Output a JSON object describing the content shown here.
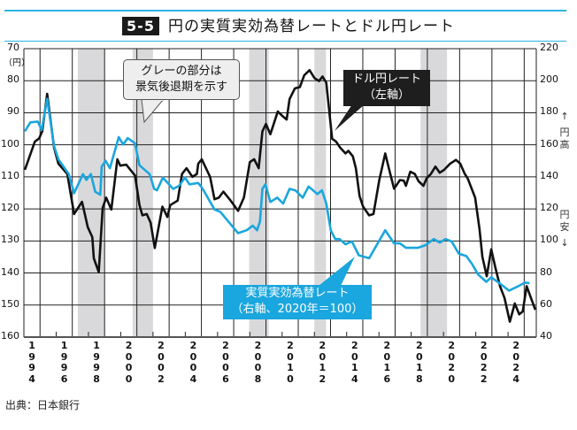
{
  "header": {
    "number": "5-5",
    "title": "円の実質実効為替レートとドル円レート"
  },
  "source": "出典：日本銀行",
  "chart_data": {
    "type": "line",
    "title": "円の実質実効為替レートとドル円レート",
    "left_axis": {
      "unit": "（円）",
      "ticks": [
        70,
        80,
        90,
        100,
        110,
        120,
        130,
        140,
        150,
        160
      ],
      "ylim": [
        70,
        160
      ],
      "inverted": true
    },
    "right_axis": {
      "ticks": [
        220,
        200,
        180,
        160,
        140,
        120,
        100,
        80,
        60,
        40
      ],
      "ylim": [
        40,
        220
      ],
      "up_label": "円高",
      "down_label": "円安"
    },
    "x_ticks": [
      "1994",
      "1996",
      "1998",
      "2000",
      "2002",
      "2004",
      "2006",
      "2008",
      "2010",
      "2012",
      "2014",
      "2016",
      "2018",
      "2020",
      "2022",
      "2024"
    ],
    "xlim": [
      1994,
      2025.75
    ],
    "grid": true,
    "recessions": [
      [
        1997.34,
        1998.98
      ],
      [
        2000.74,
        2002.0
      ],
      [
        2007.96,
        2009.17
      ],
      [
        2012.0,
        2012.72
      ],
      [
        2018.58,
        2020.22
      ]
    ],
    "annotations": {
      "recession_note": [
        "グレーの部分は",
        "景気後退期を示す"
      ],
      "usdjpy_label": [
        "ドル円レート",
        "（左軸）"
      ],
      "reer_label": [
        "実質実効為替レート",
        "（右軸、2020年＝100）"
      ]
    },
    "colors": {
      "usdjpy": "#111111",
      "reer": "#1aa6de",
      "recession": "#d9d9db"
    },
    "series": [
      {
        "name": "ドル円レート（左軸）",
        "axis": "left",
        "points": [
          [
            1994.06,
            107.8
          ],
          [
            1994.68,
            99
          ],
          [
            1994.95,
            98
          ],
          [
            1995.14,
            95.7
          ],
          [
            1995.44,
            84.1
          ],
          [
            1995.87,
            100.9
          ],
          [
            1996.14,
            105.9
          ],
          [
            1996.69,
            109.1
          ],
          [
            1997.11,
            121.6
          ],
          [
            1997.6,
            117.8
          ],
          [
            1997.96,
            125.7
          ],
          [
            1998.24,
            128.8
          ],
          [
            1998.33,
            135.4
          ],
          [
            1998.64,
            139.7
          ],
          [
            1998.88,
            119.7
          ],
          [
            1999.1,
            116.5
          ],
          [
            1999.42,
            120.2
          ],
          [
            1999.79,
            104.5
          ],
          [
            1999.97,
            106.5
          ],
          [
            2000.34,
            106.2
          ],
          [
            2000.89,
            109.6
          ],
          [
            2001.16,
            118.8
          ],
          [
            2001.34,
            122
          ],
          [
            2001.61,
            121.6
          ],
          [
            2001.85,
            124.3
          ],
          [
            2002.11,
            132.2
          ],
          [
            2002.58,
            119.3
          ],
          [
            2002.89,
            122.5
          ],
          [
            2003.07,
            118.8
          ],
          [
            2003.53,
            117.4
          ],
          [
            2003.8,
            109.1
          ],
          [
            2004.08,
            107.3
          ],
          [
            2004.44,
            110
          ],
          [
            2004.72,
            109.1
          ],
          [
            2004.8,
            105.9
          ],
          [
            2005.02,
            104.5
          ],
          [
            2005.54,
            110
          ],
          [
            2005.81,
            117
          ],
          [
            2006.08,
            116.5
          ],
          [
            2006.36,
            114.6
          ],
          [
            2006.81,
            117.4
          ],
          [
            2007.27,
            120.6
          ],
          [
            2007.63,
            116.5
          ],
          [
            2008.0,
            105.4
          ],
          [
            2008.27,
            104.5
          ],
          [
            2008.55,
            107.3
          ],
          [
            2008.78,
            95.8
          ],
          [
            2009.0,
            93.5
          ],
          [
            2009.27,
            96.7
          ],
          [
            2009.73,
            89.6
          ],
          [
            2010.06,
            91.2
          ],
          [
            2010.28,
            92.1
          ],
          [
            2010.46,
            85.7
          ],
          [
            2010.79,
            82.4
          ],
          [
            2011.1,
            82
          ],
          [
            2011.37,
            78.3
          ],
          [
            2011.7,
            76.7
          ],
          [
            2012.01,
            79.2
          ],
          [
            2012.29,
            80.1
          ],
          [
            2012.5,
            78.7
          ],
          [
            2012.74,
            80.6
          ],
          [
            2013.1,
            98.1
          ],
          [
            2013.34,
            99
          ],
          [
            2013.6,
            100.9
          ],
          [
            2013.93,
            102.7
          ],
          [
            2014.11,
            101.9
          ],
          [
            2014.38,
            103.6
          ],
          [
            2014.57,
            107.3
          ],
          [
            2014.8,
            116
          ],
          [
            2015.02,
            119.3
          ],
          [
            2015.39,
            122
          ],
          [
            2015.66,
            121.6
          ],
          [
            2016.02,
            111
          ],
          [
            2016.39,
            102.7
          ],
          [
            2016.66,
            108.2
          ],
          [
            2016.94,
            113.7
          ],
          [
            2017.3,
            111
          ],
          [
            2017.54,
            111.2
          ],
          [
            2017.67,
            112.8
          ],
          [
            2017.94,
            108.4
          ],
          [
            2018.22,
            109.1
          ],
          [
            2018.46,
            111.4
          ],
          [
            2018.76,
            112.8
          ],
          [
            2018.95,
            110.5
          ],
          [
            2019.22,
            109.1
          ],
          [
            2019.5,
            106.8
          ],
          [
            2019.77,
            108.7
          ],
          [
            2020.04,
            107.8
          ],
          [
            2020.41,
            105.9
          ],
          [
            2020.77,
            104.7
          ],
          [
            2021.04,
            105.9
          ],
          [
            2021.32,
            109.1
          ],
          [
            2021.5,
            110.5
          ],
          [
            2021.96,
            116.5
          ],
          [
            2022.23,
            126.2
          ],
          [
            2022.41,
            135
          ],
          [
            2022.68,
            141
          ],
          [
            2022.96,
            132.6
          ],
          [
            2023.23,
            138.6
          ],
          [
            2023.5,
            144.1
          ],
          [
            2023.78,
            147.8
          ],
          [
            2024.11,
            155.2
          ],
          [
            2024.42,
            149.5
          ],
          [
            2024.69,
            152.9
          ],
          [
            2024.91,
            152
          ],
          [
            2025.15,
            144.1
          ],
          [
            2025.42,
            147.8
          ],
          [
            2025.69,
            151.5
          ]
        ]
      },
      {
        "name": "実質実効為替レート（右軸、2020年＝100）",
        "axis": "right",
        "points": [
          [
            1994.06,
            168.4
          ],
          [
            1994.4,
            174
          ],
          [
            1994.86,
            174.5
          ],
          [
            1995.1,
            169.3
          ],
          [
            1995.44,
            188.7
          ],
          [
            1995.87,
            159.2
          ],
          [
            1996.14,
            150.9
          ],
          [
            1996.78,
            141.7
          ],
          [
            1997.11,
            129.8
          ],
          [
            1997.66,
            141.7
          ],
          [
            1997.87,
            138.1
          ],
          [
            1998.15,
            141.7
          ],
          [
            1998.42,
            130.7
          ],
          [
            1998.73,
            128.8
          ],
          [
            1998.82,
            146.4
          ],
          [
            1999.06,
            150
          ],
          [
            1999.33,
            145.4
          ],
          [
            1999.88,
            164.8
          ],
          [
            2000.15,
            160.2
          ],
          [
            2000.43,
            164.2
          ],
          [
            2000.88,
            161
          ],
          [
            2001.16,
            147.2
          ],
          [
            2001.79,
            141.7
          ],
          [
            2002.07,
            132.5
          ],
          [
            2002.25,
            131.6
          ],
          [
            2002.61,
            139.5
          ],
          [
            2003.25,
            132.5
          ],
          [
            2003.62,
            134.4
          ],
          [
            2003.98,
            139.5
          ],
          [
            2004.26,
            135.3
          ],
          [
            2004.8,
            136.2
          ],
          [
            2005.08,
            132.5
          ],
          [
            2005.81,
            119.6
          ],
          [
            2006.17,
            118.2
          ],
          [
            2007.27,
            104.9
          ],
          [
            2007.81,
            106.7
          ],
          [
            2008.18,
            109.5
          ],
          [
            2008.45,
            106.7
          ],
          [
            2008.63,
            112.3
          ],
          [
            2008.78,
            132.5
          ],
          [
            2008.96,
            135.3
          ],
          [
            2009.27,
            124.3
          ],
          [
            2009.7,
            127
          ],
          [
            2010.06,
            123.3
          ],
          [
            2010.46,
            132.5
          ],
          [
            2010.82,
            131.6
          ],
          [
            2011.28,
            127
          ],
          [
            2011.64,
            134
          ],
          [
            2012.19,
            129.2
          ],
          [
            2012.47,
            131.6
          ],
          [
            2012.74,
            123.3
          ],
          [
            2013.01,
            106.7
          ],
          [
            2013.29,
            101.2
          ],
          [
            2013.56,
            101.2
          ],
          [
            2013.93,
            97.9
          ],
          [
            2014.33,
            99.7
          ],
          [
            2014.75,
            91.1
          ],
          [
            2015.39,
            89.2
          ],
          [
            2016.39,
            106.7
          ],
          [
            2016.94,
            98.5
          ],
          [
            2017.3,
            98.5
          ],
          [
            2017.67,
            95.7
          ],
          [
            2018.4,
            95.7
          ],
          [
            2018.85,
            97.2
          ],
          [
            2019.4,
            101.2
          ],
          [
            2019.77,
            99
          ],
          [
            2020.13,
            101.2
          ],
          [
            2020.5,
            99.7
          ],
          [
            2020.95,
            92
          ],
          [
            2021.41,
            90.6
          ],
          [
            2021.77,
            85.6
          ],
          [
            2022.14,
            79.1
          ],
          [
            2022.65,
            74.5
          ],
          [
            2022.96,
            77.3
          ],
          [
            2023.42,
            74
          ],
          [
            2024.06,
            69
          ],
          [
            2024.69,
            72.1
          ],
          [
            2025.05,
            74
          ],
          [
            2025.33,
            73.6
          ]
        ]
      }
    ]
  }
}
